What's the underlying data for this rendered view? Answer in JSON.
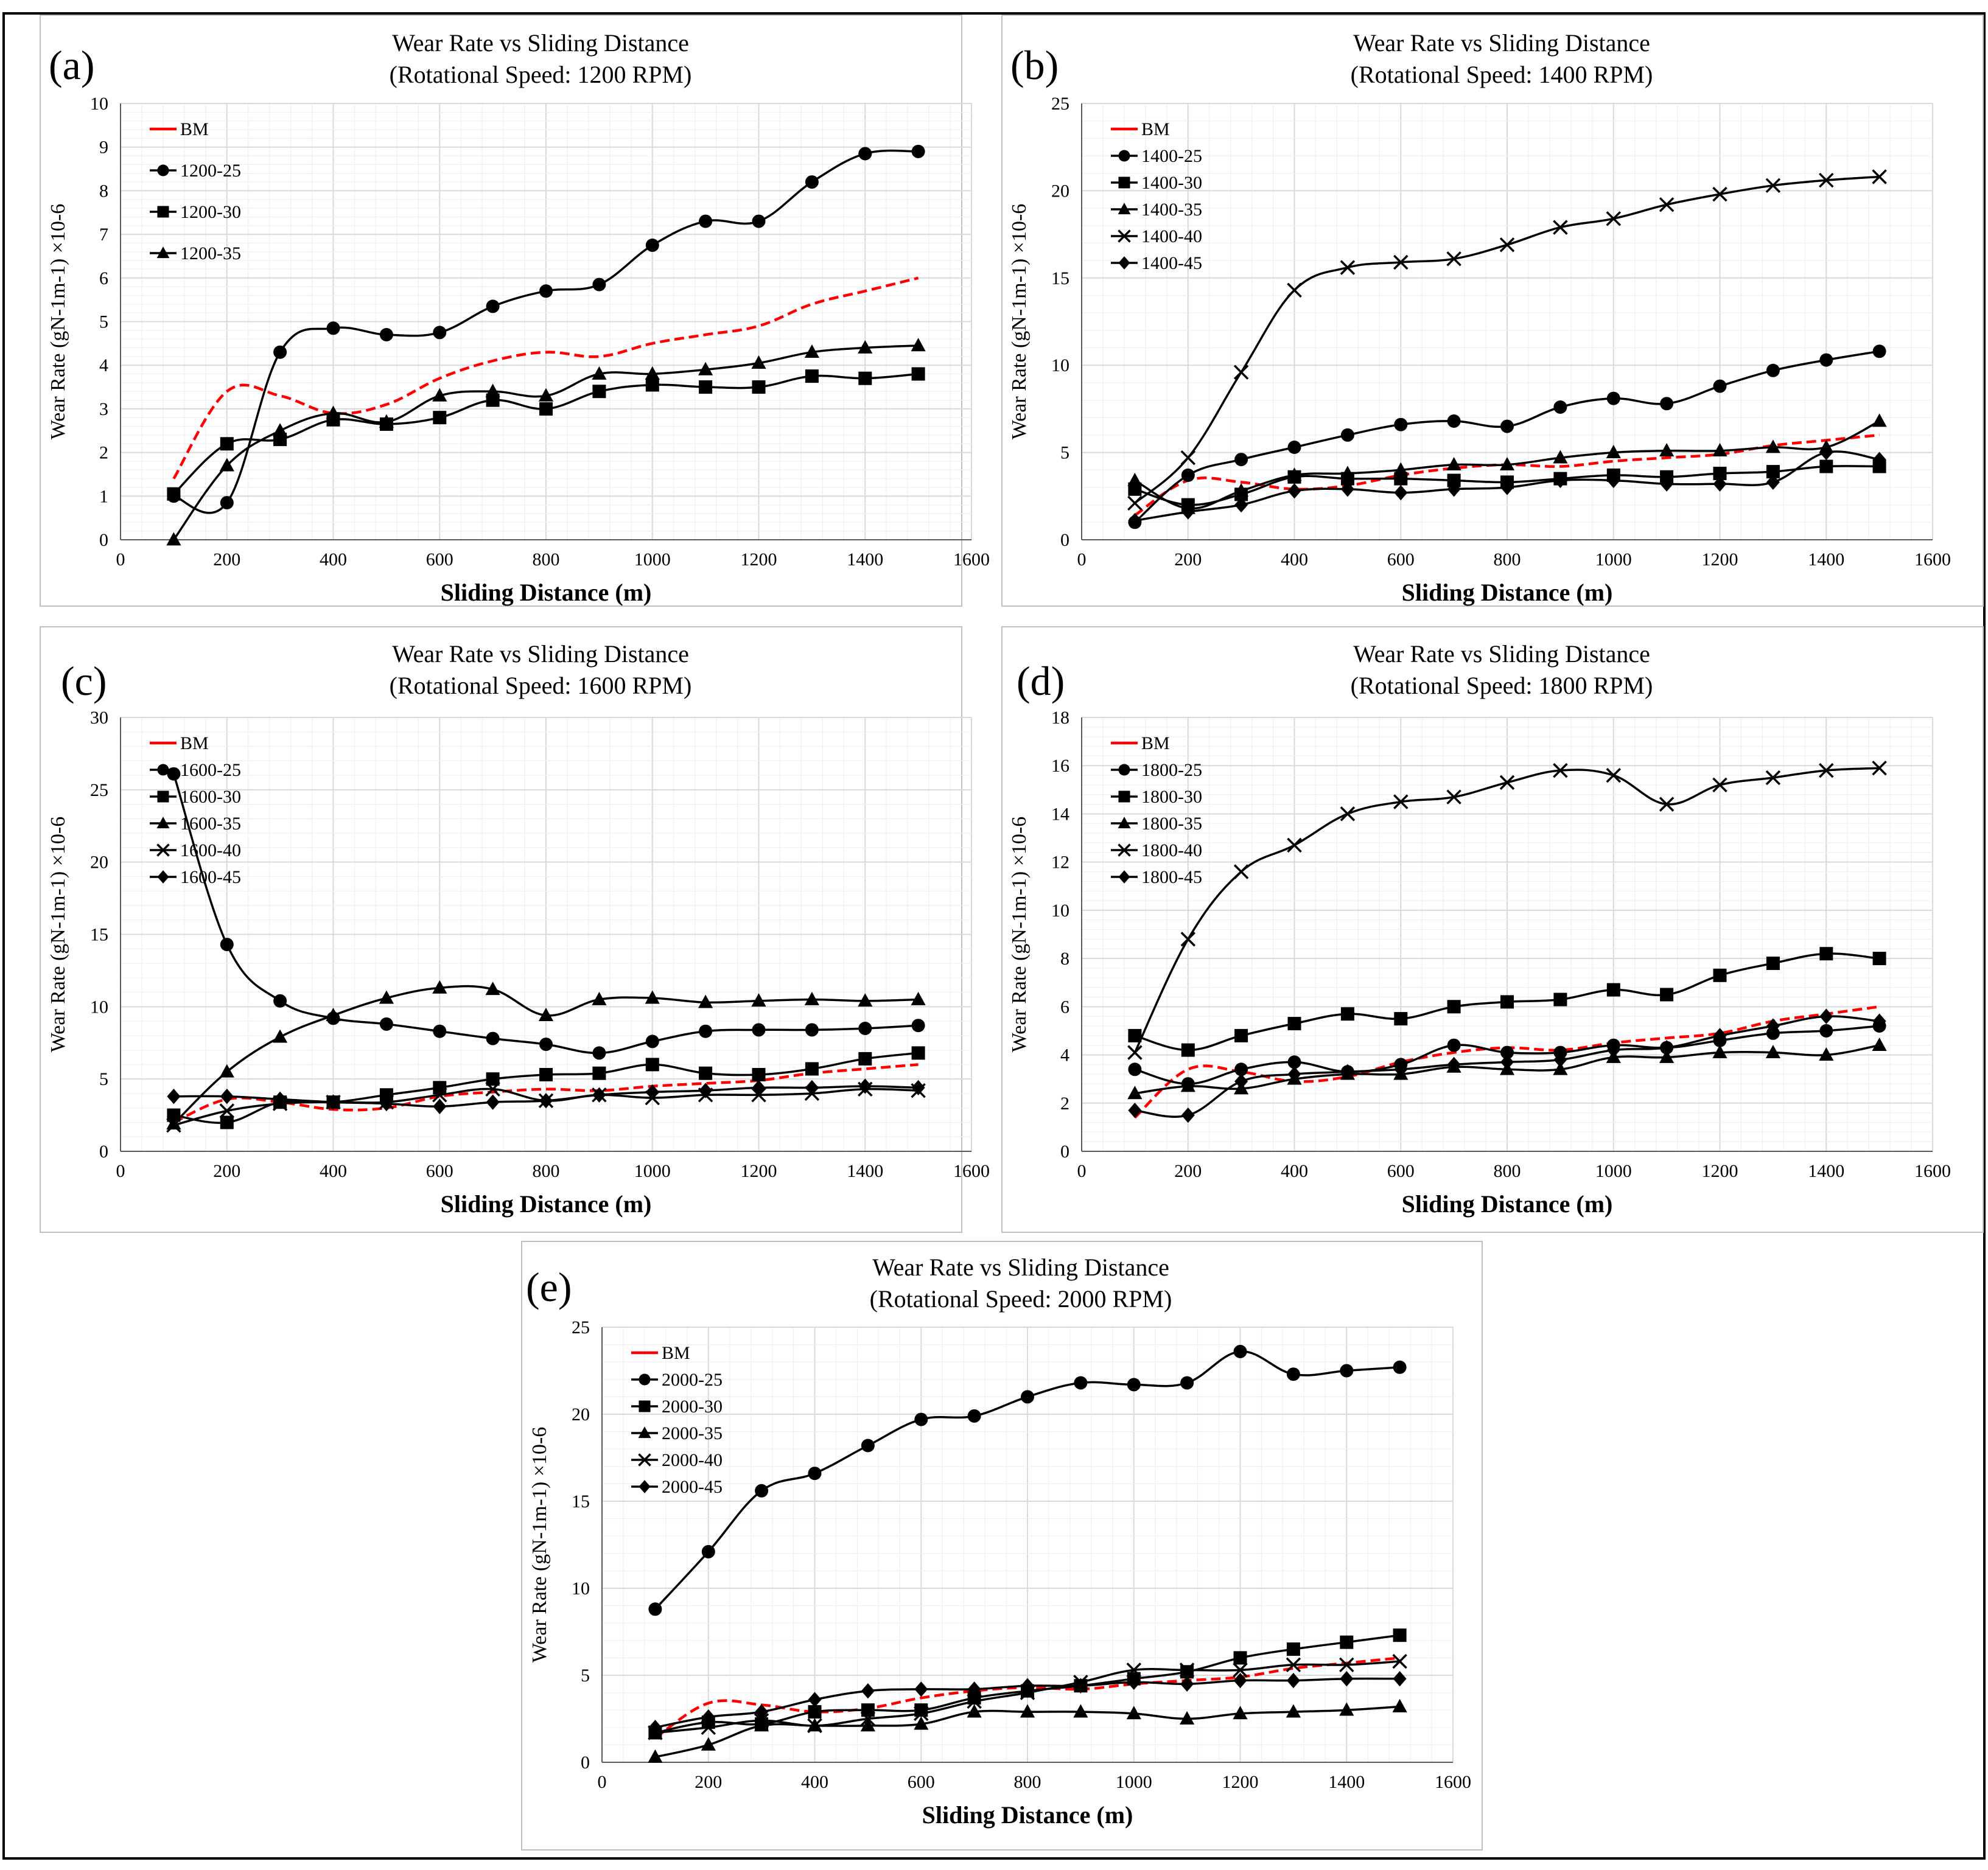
{
  "figure": {
    "title_prefix": "Wear Rate vs Sliding Distance",
    "colors": {
      "bm": "#ff0000",
      "series": "#000000",
      "grid_major": "#d9d9d9",
      "grid_minor": "#efefef",
      "frame": "#000000",
      "panel_border": "#bfbfbf"
    }
  },
  "chart_data": [
    {
      "id": "a",
      "panel_label": "(a)",
      "type": "line",
      "title": "Wear Rate vs Sliding Distance",
      "subtitle": "(Rotational Speed: 1200 RPM)",
      "xlabel": "Sliding Distance (m)",
      "ylabel": "Wear Rate (gN-1m-1) ×10-6",
      "xlim": [
        0,
        1600
      ],
      "ylim": [
        0,
        10
      ],
      "xticks": [
        0,
        200,
        400,
        600,
        800,
        1000,
        1200,
        1400,
        1600
      ],
      "yticks": [
        0,
        1,
        2,
        3,
        4,
        5,
        6,
        7,
        8,
        9,
        10
      ],
      "grid": true,
      "legend_position": "top-left",
      "x": [
        100,
        200,
        300,
        400,
        500,
        600,
        700,
        800,
        900,
        1000,
        1100,
        1200,
        1300,
        1400,
        1500
      ],
      "series": [
        {
          "name": "BM",
          "marker": "none",
          "dashed": true,
          "values": [
            1.4,
            3.4,
            3.3,
            2.9,
            3.1,
            3.7,
            4.1,
            4.3,
            4.2,
            4.5,
            4.7,
            4.9,
            5.4,
            5.7,
            6.0
          ]
        },
        {
          "name": "1200-25",
          "marker": "circle",
          "dashed": false,
          "values": [
            1.0,
            0.85,
            4.3,
            4.85,
            4.7,
            4.75,
            5.35,
            5.7,
            5.85,
            6.75,
            7.3,
            7.3,
            8.2,
            8.85,
            8.9
          ]
        },
        {
          "name": "1200-30",
          "marker": "square",
          "dashed": false,
          "values": [
            1.05,
            2.2,
            2.3,
            2.75,
            2.65,
            2.8,
            3.2,
            3.0,
            3.4,
            3.55,
            3.5,
            3.5,
            3.75,
            3.7,
            3.8
          ]
        },
        {
          "name": "1200-35",
          "marker": "triangle",
          "dashed": false,
          "values": [
            0.0,
            1.7,
            2.5,
            2.9,
            2.7,
            3.3,
            3.4,
            3.3,
            3.8,
            3.8,
            3.9,
            4.05,
            4.3,
            4.4,
            4.45
          ]
        }
      ]
    },
    {
      "id": "b",
      "panel_label": "(b)",
      "type": "line",
      "title": "Wear Rate vs Sliding Distance",
      "subtitle": "(Rotational Speed: 1400 RPM)",
      "xlabel": "Sliding Distance (m)",
      "ylabel": "Wear Rate (gN-1m-1) ×10-6",
      "xlim": [
        0,
        1600
      ],
      "ylim": [
        0,
        25
      ],
      "xticks": [
        0,
        200,
        400,
        600,
        800,
        1000,
        1200,
        1400,
        1600
      ],
      "yticks": [
        0,
        5,
        10,
        15,
        20,
        25
      ],
      "grid": true,
      "legend_position": "top-left",
      "x": [
        100,
        200,
        300,
        400,
        500,
        600,
        700,
        800,
        900,
        1000,
        1100,
        1200,
        1300,
        1400,
        1500
      ],
      "series": [
        {
          "name": "BM",
          "marker": "none",
          "dashed": true,
          "values": [
            1.4,
            3.4,
            3.3,
            2.9,
            3.1,
            3.7,
            4.1,
            4.3,
            4.2,
            4.5,
            4.7,
            4.9,
            5.4,
            5.7,
            6.0
          ]
        },
        {
          "name": "1400-25",
          "marker": "circle",
          "dashed": false,
          "values": [
            1.0,
            3.7,
            4.6,
            5.3,
            6.0,
            6.6,
            6.8,
            6.5,
            7.6,
            8.1,
            7.8,
            8.8,
            9.7,
            10.3,
            10.8
          ]
        },
        {
          "name": "1400-30",
          "marker": "square",
          "dashed": false,
          "values": [
            2.9,
            2.0,
            2.6,
            3.6,
            3.5,
            3.5,
            3.4,
            3.3,
            3.5,
            3.7,
            3.6,
            3.8,
            3.9,
            4.2,
            4.2
          ]
        },
        {
          "name": "1400-35",
          "marker": "triangle",
          "dashed": false,
          "values": [
            3.4,
            1.8,
            2.8,
            3.7,
            3.8,
            4.0,
            4.3,
            4.3,
            4.7,
            5.0,
            5.1,
            5.1,
            5.3,
            5.3,
            6.8
          ]
        },
        {
          "name": "1400-40",
          "marker": "x",
          "dashed": false,
          "values": [
            2.1,
            4.7,
            9.6,
            14.3,
            15.6,
            15.9,
            16.1,
            16.9,
            17.9,
            18.4,
            19.2,
            19.8,
            20.3,
            20.6,
            20.8
          ]
        },
        {
          "name": "1400-45",
          "marker": "diamond",
          "dashed": false,
          "values": [
            1.1,
            1.6,
            2.0,
            2.8,
            2.9,
            2.7,
            2.9,
            3.0,
            3.4,
            3.4,
            3.2,
            3.2,
            3.3,
            5.0,
            4.6
          ]
        }
      ]
    },
    {
      "id": "c",
      "panel_label": "(c)",
      "type": "line",
      "title": "Wear Rate vs Sliding Distance",
      "subtitle": "(Rotational Speed: 1600 RPM)",
      "xlabel": "Sliding Distance (m)",
      "ylabel": "Wear Rate (gN-1m-1) ×10-6",
      "xlim": [
        0,
        1600
      ],
      "ylim": [
        0,
        30
      ],
      "xticks": [
        0,
        200,
        400,
        600,
        800,
        1000,
        1200,
        1400,
        1600
      ],
      "yticks": [
        0,
        5,
        10,
        15,
        20,
        25,
        30
      ],
      "grid": true,
      "legend_position": "top-left",
      "x": [
        100,
        200,
        300,
        400,
        500,
        600,
        700,
        800,
        900,
        1000,
        1100,
        1200,
        1300,
        1400,
        1500
      ],
      "series": [
        {
          "name": "BM",
          "marker": "none",
          "dashed": true,
          "values": [
            2.0,
            3.6,
            3.4,
            2.9,
            3.0,
            3.8,
            4.1,
            4.3,
            4.2,
            4.5,
            4.7,
            4.9,
            5.4,
            5.7,
            6.0
          ]
        },
        {
          "name": "1600-25",
          "marker": "circle",
          "dashed": false,
          "values": [
            26.1,
            14.3,
            10.4,
            9.2,
            8.8,
            8.3,
            7.8,
            7.4,
            6.8,
            7.6,
            8.3,
            8.4,
            8.4,
            8.5,
            8.7
          ]
        },
        {
          "name": "1600-30",
          "marker": "square",
          "dashed": false,
          "values": [
            2.5,
            2.0,
            3.4,
            3.4,
            3.9,
            4.4,
            5.0,
            5.3,
            5.4,
            6.0,
            5.4,
            5.3,
            5.7,
            6.4,
            6.8
          ]
        },
        {
          "name": "1600-35",
          "marker": "triangle",
          "dashed": false,
          "values": [
            1.9,
            5.5,
            7.9,
            9.4,
            10.6,
            11.3,
            11.2,
            9.4,
            10.5,
            10.6,
            10.3,
            10.4,
            10.5,
            10.4,
            10.5
          ]
        },
        {
          "name": "1600-40",
          "marker": "x",
          "dashed": false,
          "values": [
            1.8,
            2.8,
            3.3,
            3.4,
            3.4,
            3.9,
            4.3,
            3.5,
            3.9,
            3.7,
            3.9,
            3.9,
            4.0,
            4.3,
            4.2
          ]
        },
        {
          "name": "1600-45",
          "marker": "diamond",
          "dashed": false,
          "values": [
            3.8,
            3.8,
            3.6,
            3.4,
            3.3,
            3.1,
            3.4,
            3.5,
            3.9,
            4.1,
            4.2,
            4.4,
            4.4,
            4.5,
            4.4
          ]
        }
      ]
    },
    {
      "id": "d",
      "panel_label": "(d)",
      "type": "line",
      "title": "Wear Rate vs Sliding Distance",
      "subtitle": "(Rotational Speed: 1800 RPM)",
      "xlabel": "Sliding Distance (m)",
      "ylabel": "Wear Rate (gN-1m-1) ×10-6",
      "xlim": [
        0,
        1600
      ],
      "ylim": [
        0,
        18
      ],
      "xticks": [
        0,
        200,
        400,
        600,
        800,
        1000,
        1200,
        1400,
        1600
      ],
      "yticks": [
        0,
        2,
        4,
        6,
        8,
        10,
        12,
        14,
        16,
        18
      ],
      "grid": true,
      "legend_position": "top-left",
      "x": [
        100,
        200,
        300,
        400,
        500,
        600,
        700,
        800,
        900,
        1000,
        1100,
        1200,
        1300,
        1400,
        1500
      ],
      "series": [
        {
          "name": "BM",
          "marker": "none",
          "dashed": true,
          "values": [
            1.4,
            3.4,
            3.3,
            2.9,
            3.1,
            3.7,
            4.1,
            4.3,
            4.2,
            4.5,
            4.7,
            4.9,
            5.4,
            5.7,
            6.0
          ]
        },
        {
          "name": "1800-25",
          "marker": "circle",
          "dashed": false,
          "values": [
            3.4,
            2.8,
            3.4,
            3.7,
            3.3,
            3.6,
            4.4,
            4.1,
            4.1,
            4.4,
            4.3,
            4.6,
            4.9,
            5.0,
            5.2
          ]
        },
        {
          "name": "1800-30",
          "marker": "square",
          "dashed": false,
          "values": [
            4.8,
            4.2,
            4.8,
            5.3,
            5.7,
            5.5,
            6.0,
            6.2,
            6.3,
            6.7,
            6.5,
            7.3,
            7.8,
            8.2,
            8.0
          ]
        },
        {
          "name": "1800-35",
          "marker": "triangle",
          "dashed": false,
          "values": [
            2.4,
            2.7,
            2.6,
            3.0,
            3.2,
            3.2,
            3.5,
            3.4,
            3.4,
            3.9,
            3.9,
            4.1,
            4.1,
            4.0,
            4.4
          ]
        },
        {
          "name": "1800-40",
          "marker": "x",
          "dashed": false,
          "values": [
            4.1,
            8.8,
            11.6,
            12.7,
            14.0,
            14.5,
            14.7,
            15.3,
            15.8,
            15.6,
            14.4,
            15.2,
            15.5,
            15.8,
            15.9
          ]
        },
        {
          "name": "1800-45",
          "marker": "diamond",
          "dashed": false,
          "values": [
            1.7,
            1.5,
            2.9,
            3.2,
            3.3,
            3.4,
            3.6,
            3.7,
            3.8,
            4.2,
            4.3,
            4.8,
            5.2,
            5.6,
            5.4
          ]
        }
      ]
    },
    {
      "id": "e",
      "panel_label": "(e)",
      "type": "line",
      "title": "Wear Rate vs Sliding Distance",
      "subtitle": "(Rotational Speed: 2000 RPM)",
      "xlabel": "Sliding Distance (m)",
      "ylabel": "Wear Rate (gN-1m-1) ×10-6",
      "xlim": [
        0,
        1600
      ],
      "ylim": [
        0,
        25
      ],
      "xticks": [
        0,
        200,
        400,
        600,
        800,
        1000,
        1200,
        1400,
        1600
      ],
      "yticks": [
        0,
        5,
        10,
        15,
        20,
        25
      ],
      "grid": true,
      "legend_position": "top-left",
      "x": [
        100,
        200,
        300,
        400,
        500,
        600,
        700,
        800,
        900,
        1000,
        1100,
        1200,
        1300,
        1400,
        1500
      ],
      "series": [
        {
          "name": "BM",
          "marker": "none",
          "dashed": true,
          "values": [
            1.4,
            3.4,
            3.3,
            2.9,
            3.1,
            3.7,
            4.1,
            4.3,
            4.2,
            4.5,
            4.7,
            4.9,
            5.4,
            5.7,
            6.0
          ]
        },
        {
          "name": "2000-25",
          "marker": "circle",
          "dashed": false,
          "values": [
            8.8,
            12.1,
            15.6,
            16.6,
            18.2,
            19.7,
            19.9,
            21.0,
            21.8,
            21.7,
            21.8,
            23.6,
            22.3,
            22.5,
            22.7
          ]
        },
        {
          "name": "2000-30",
          "marker": "square",
          "dashed": false,
          "values": [
            1.7,
            2.3,
            2.2,
            2.9,
            3.0,
            3.0,
            3.7,
            4.1,
            4.4,
            4.8,
            5.2,
            6.0,
            6.5,
            6.9,
            7.3
          ]
        },
        {
          "name": "2000-35",
          "marker": "triangle",
          "dashed": false,
          "values": [
            0.3,
            1.0,
            2.1,
            2.1,
            2.1,
            2.2,
            2.9,
            2.9,
            2.9,
            2.8,
            2.5,
            2.8,
            2.9,
            3.0,
            3.2
          ]
        },
        {
          "name": "2000-40",
          "marker": "x",
          "dashed": false,
          "values": [
            1.7,
            2.0,
            2.4,
            2.1,
            2.5,
            2.8,
            3.5,
            4.0,
            4.6,
            5.3,
            5.3,
            5.3,
            5.6,
            5.6,
            5.8
          ]
        },
        {
          "name": "2000-45",
          "marker": "diamond",
          "dashed": false,
          "values": [
            2.0,
            2.6,
            2.9,
            3.6,
            4.1,
            4.2,
            4.2,
            4.4,
            4.4,
            4.6,
            4.5,
            4.7,
            4.7,
            4.8,
            4.8
          ]
        }
      ]
    }
  ]
}
